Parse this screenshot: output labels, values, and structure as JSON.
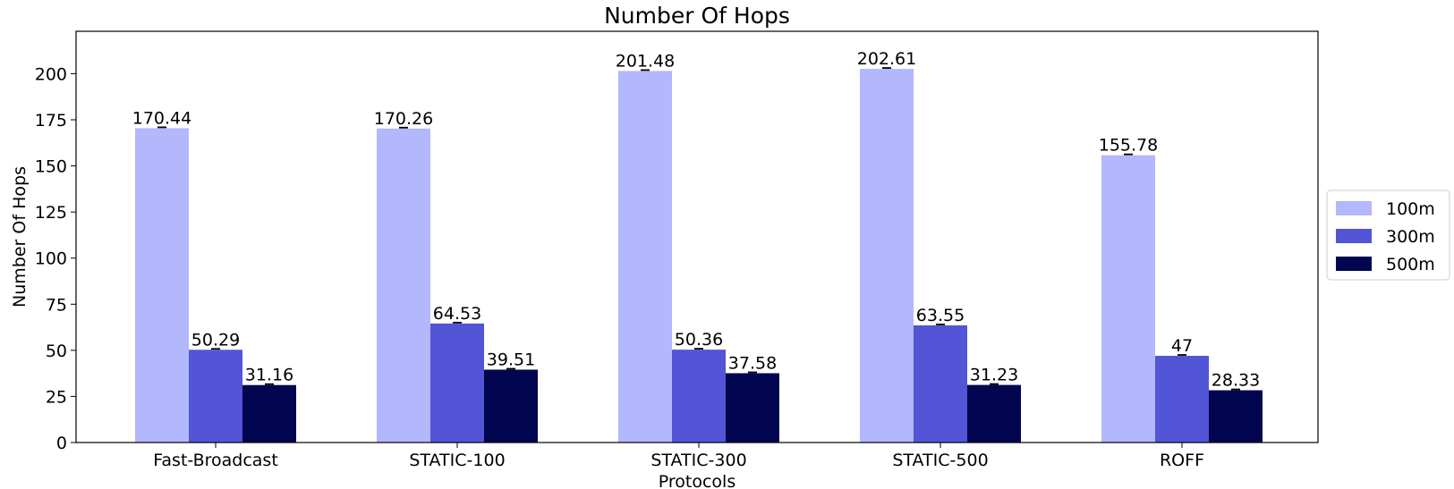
{
  "chart_data": {
    "type": "bar",
    "title": "Number Of Hops",
    "xlabel": "Protocols",
    "ylabel": "Number Of Hops",
    "categories": [
      "Fast-Broadcast",
      "STATIC-100",
      "STATIC-300",
      "STATIC-500",
      "ROFF"
    ],
    "series": [
      {
        "name": "100m",
        "color": "#b3b7fc",
        "values": [
          170.44,
          170.26,
          201.48,
          202.61,
          155.78
        ],
        "labels": [
          "170.44",
          "170.26",
          "201.48",
          "202.61",
          "155.78"
        ]
      },
      {
        "name": "300m",
        "color": "#5255d6",
        "values": [
          50.29,
          64.53,
          50.36,
          63.55,
          47
        ],
        "labels": [
          "50.29",
          "64.53",
          "50.36",
          "63.55",
          "47"
        ]
      },
      {
        "name": "500m",
        "color": "#020550",
        "values": [
          31.16,
          39.51,
          37.58,
          31.23,
          28.33
        ],
        "labels": [
          "31.16",
          "39.51",
          "37.58",
          "31.23",
          "28.33"
        ]
      }
    ],
    "ylim": [
      0,
      223
    ],
    "yticks": [
      0,
      25,
      50,
      75,
      100,
      125,
      150,
      175,
      200
    ],
    "grid": false,
    "legend": "right, outside plot",
    "error_bars": true
  }
}
